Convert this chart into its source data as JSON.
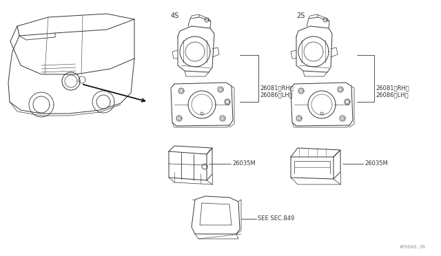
{
  "bg_color": "#ffffff",
  "line_color": "#333333",
  "label_4s": "4S",
  "label_2s": "2S",
  "label_26081rh": "26081〈RH〉",
  "label_26086lh": "26086〈LH〉",
  "label_26035m": "26035M",
  "label_see_sec": "SEE SEC.849",
  "watermark": "AP60A0.3R",
  "fig_size": [
    6.4,
    3.72
  ],
  "dpi": 100
}
